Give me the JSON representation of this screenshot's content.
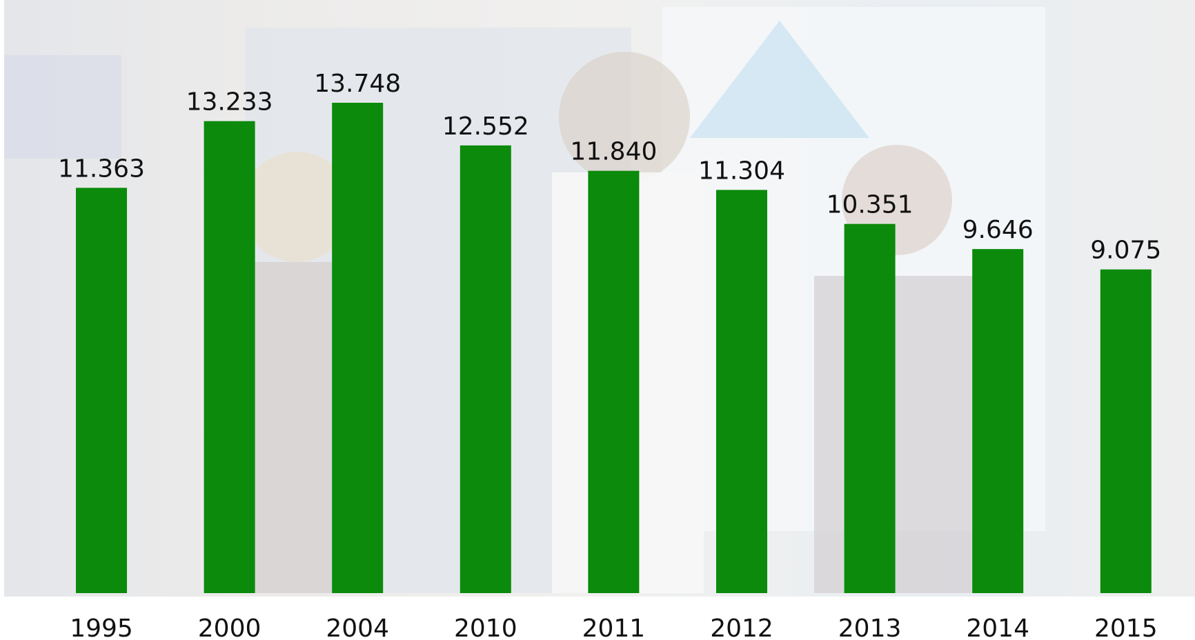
{
  "chart_data": {
    "type": "bar",
    "categories": [
      "1995",
      "2000",
      "2004",
      "2010",
      "2011",
      "2012",
      "2013",
      "2014",
      "2015"
    ],
    "values": [
      11363,
      13233,
      13748,
      12552,
      11840,
      11304,
      10351,
      9646,
      9075
    ],
    "value_labels": [
      "11.363",
      "13.233",
      "13.748",
      "12.552",
      "11.840",
      "11.304",
      "10.351",
      "9.646",
      "9.075"
    ],
    "color": "#0b8a0b"
  }
}
